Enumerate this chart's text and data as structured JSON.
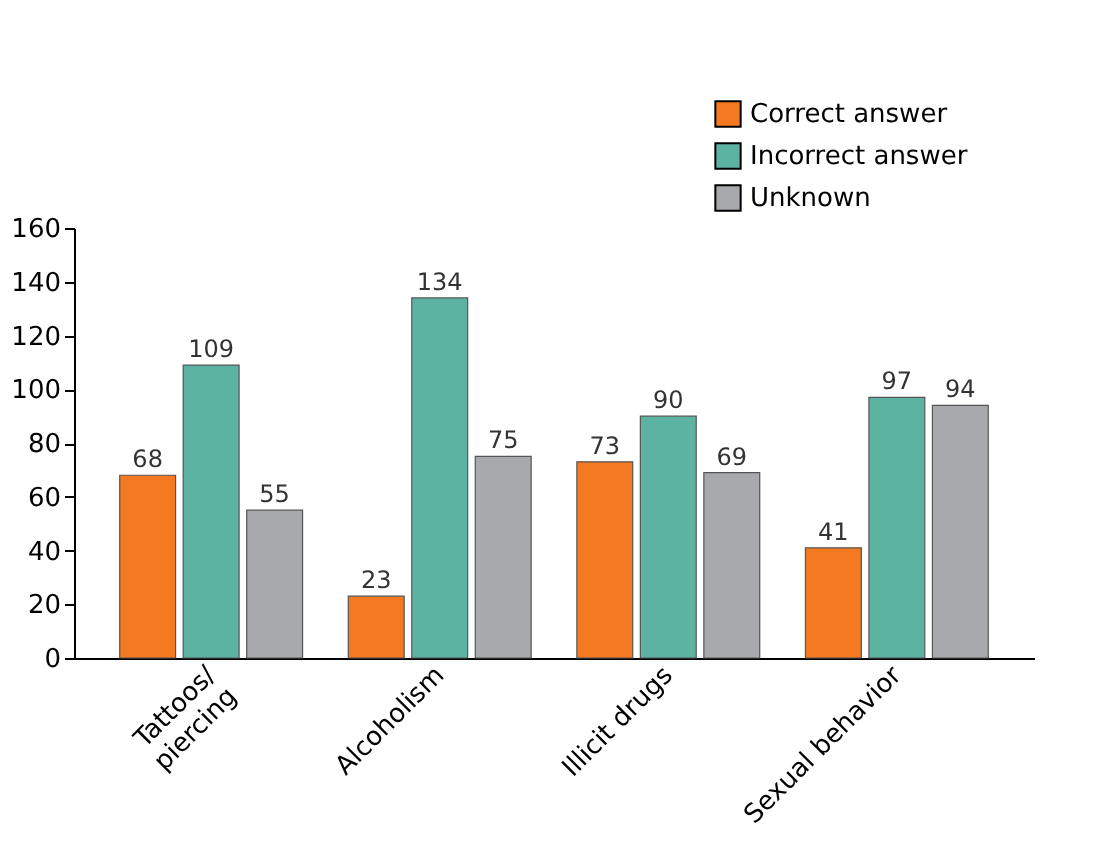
{
  "chart_data": {
    "type": "bar",
    "categories": [
      "Tattoos/\npiercing",
      "Alcoholism",
      "Illicit drugs",
      "Sexual behavior"
    ],
    "series": [
      {
        "name": "Correct answer",
        "color": "#f47920",
        "values": [
          68,
          23,
          73,
          41
        ]
      },
      {
        "name": "Incorrect answer",
        "color": "#5db3a2",
        "values": [
          109,
          134,
          90,
          97
        ]
      },
      {
        "name": "Unknown",
        "color": "#a7a9ac",
        "values": [
          55,
          75,
          69,
          94
        ]
      }
    ],
    "ylim": [
      0,
      160
    ],
    "yticks": [
      0,
      20,
      40,
      60,
      80,
      100,
      120,
      140,
      160
    ],
    "grid": false,
    "legend": "top right",
    "data_labels": true
  }
}
